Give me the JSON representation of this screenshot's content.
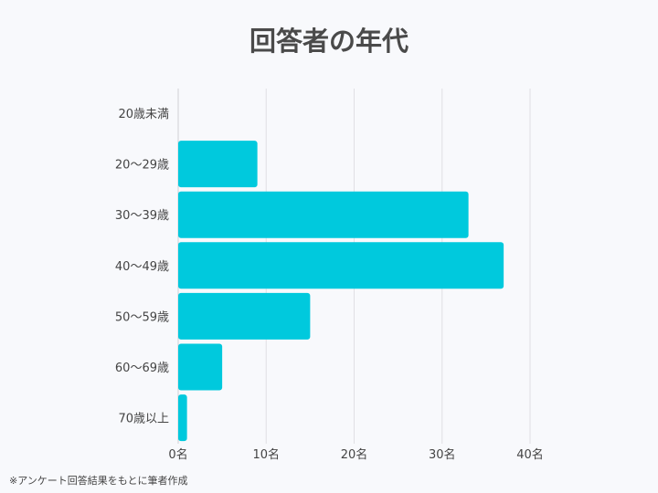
{
  "chart_data": {
    "type": "bar",
    "orientation": "horizontal",
    "title": "回答者の年代",
    "categories": [
      "20歳未満",
      "20～29歳",
      "30～39歳",
      "40～49歳",
      "50～59歳",
      "60～69歳",
      "70歳以上"
    ],
    "values": [
      0,
      9,
      33,
      37,
      15,
      5,
      1
    ],
    "xlim": [
      0,
      40
    ],
    "xticks": [
      0,
      10,
      20,
      30,
      40
    ],
    "xtick_labels": [
      "0名",
      "10名",
      "20名",
      "30名",
      "40名"
    ],
    "grid": "vertical",
    "bar_color": "#00c9dd"
  },
  "footnote": "※アンケート回答結果をもとに筆者作成"
}
